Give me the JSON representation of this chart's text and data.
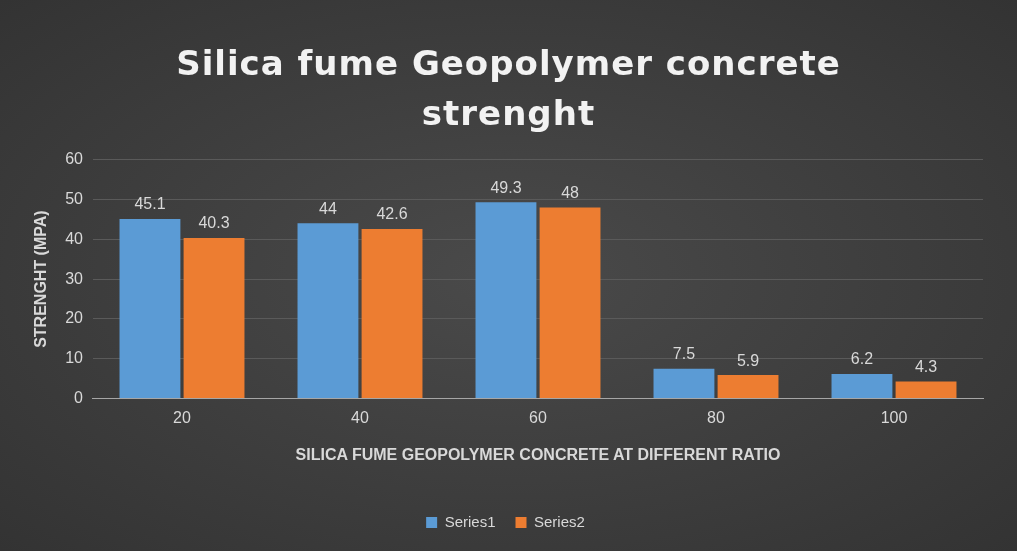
{
  "chart_data": {
    "type": "bar",
    "title": "Silica fume Geopolymer concrete strenght",
    "xlabel": "SILICA FUME GEOPOLYMER CONCRETE AT DIFFERENT RATIO",
    "ylabel": "STRENGHT (MPA)",
    "categories": [
      "20",
      "40",
      "60",
      "80",
      "100"
    ],
    "series": [
      {
        "name": "Series1",
        "color": "#5b9bd5",
        "values": [
          45.1,
          44,
          49.3,
          7.5,
          6.2
        ]
      },
      {
        "name": "Series2",
        "color": "#ed7d31",
        "values": [
          40.3,
          42.6,
          48,
          5.9,
          4.3
        ]
      }
    ],
    "ylim": [
      0,
      60
    ],
    "yticks": [
      0,
      10,
      20,
      30,
      40,
      50,
      60
    ],
    "grid": "y",
    "legend": "bottom",
    "data_labels": true
  }
}
